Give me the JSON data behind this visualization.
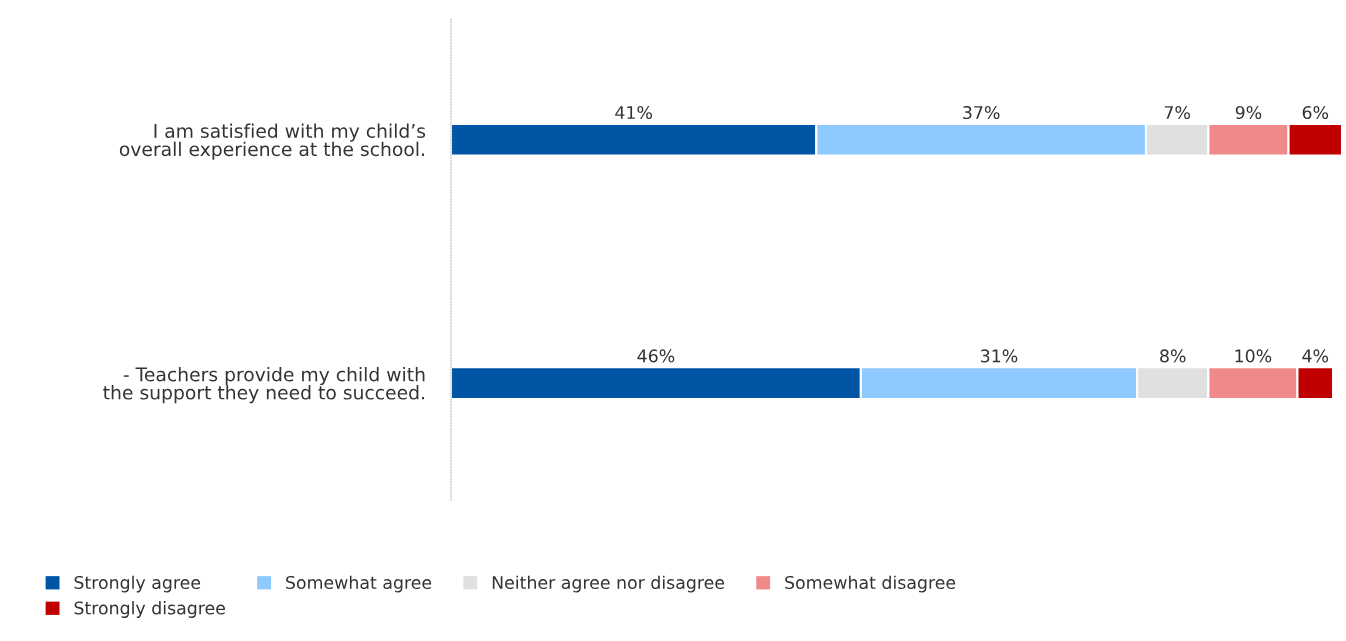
{
  "chart_data": {
    "type": "bar",
    "orientation": "horizontal",
    "stacked": true,
    "legend": "bottom",
    "grid": false,
    "categories": [
      "I am satisfied with my child’s\noverall experience at the school.",
      "- Teachers provide my child with\nthe support they need to succeed."
    ],
    "series": [
      {
        "name": "Strongly agree",
        "color": "#0055a4",
        "values": [
          41,
          46
        ],
        "value_labels": [
          "41%",
          "46%"
        ]
      },
      {
        "name": "Somewhat agree",
        "color": "#8ec9ff",
        "values": [
          37,
          31
        ],
        "value_labels": [
          "37%",
          "31%"
        ]
      },
      {
        "name": "Neither agree nor disagree",
        "color": "#e0e0e0",
        "values": [
          7,
          8
        ],
        "value_labels": [
          "7%",
          "8%"
        ]
      },
      {
        "name": "Somewhat disagree",
        "color": "#f08a8a",
        "values": [
          9,
          10
        ],
        "value_labels": [
          "9%",
          "10%"
        ]
      },
      {
        "name": "Strongly disagree",
        "color": "#c00000",
        "values": [
          6,
          4
        ],
        "value_labels": [
          "6%",
          "4%"
        ]
      }
    ]
  }
}
